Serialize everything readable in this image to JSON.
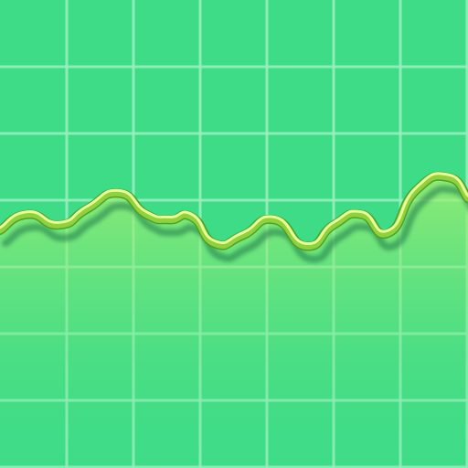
{
  "tile": {
    "icon": "waveform-graph-icon",
    "grid": true
  },
  "colors": {
    "background": "#3fdc87",
    "grid": "#9af0c0",
    "area_fill": "#7be07a",
    "line_highlight": "#f2ff9a",
    "line_main": "#8fd23c",
    "line_dark": "#4a9e2a",
    "shadow": "#1f7a4a"
  },
  "chart_data": {
    "type": "area",
    "grid": true,
    "x": [
      0,
      30,
      65,
      95,
      130,
      160,
      185,
      210,
      235,
      265,
      300,
      335,
      365,
      395,
      425,
      455,
      490,
      512
    ],
    "y": [
      0.4,
      0.52,
      0.44,
      0.56,
      0.68,
      0.52,
      0.48,
      0.5,
      0.3,
      0.36,
      0.48,
      0.28,
      0.44,
      0.52,
      0.38,
      0.7,
      0.8,
      0.64
    ]
  }
}
